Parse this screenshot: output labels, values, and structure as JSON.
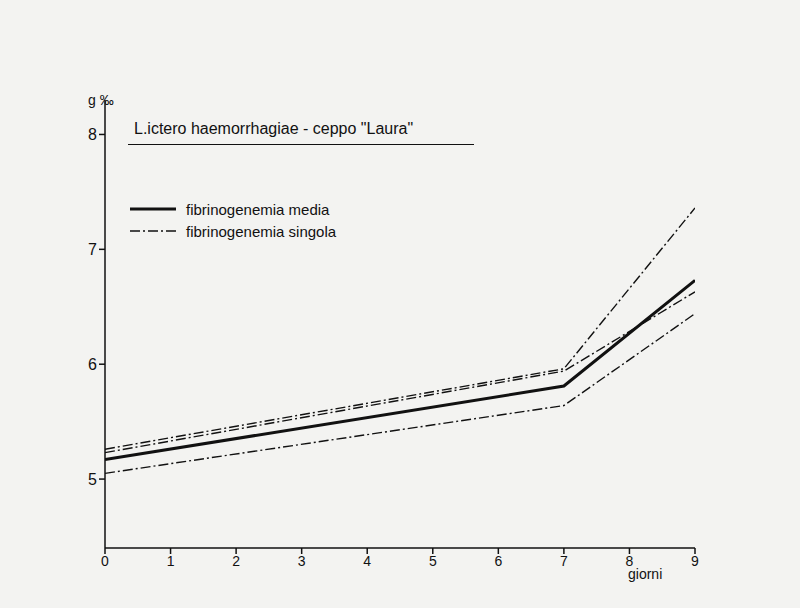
{
  "chart_data": {
    "type": "line",
    "title": "L.ictero haemorrhagiae - ceppo \"Laura\"",
    "y_label": "g ‰",
    "x_label": "giorni",
    "x": [
      0,
      7,
      9
    ],
    "xlim": [
      0,
      9
    ],
    "xticks": [
      0,
      1,
      2,
      3,
      4,
      5,
      6,
      7,
      8,
      9
    ],
    "ylim": [
      4.4,
      8.3
    ],
    "yticks": [
      5,
      6,
      7,
      8
    ],
    "grid": false,
    "legend": "upper left",
    "series": [
      {
        "name": "fibrinogenemia media",
        "color": "#111111",
        "line_style": "solid",
        "values": [
          5.17,
          5.81,
          6.73
        ]
      },
      {
        "name": "fibrinogenemia singola",
        "color": "#111111",
        "line_style": "dashdot",
        "values": [
          5.26,
          5.96,
          7.36
        ]
      },
      {
        "name": "fibrinogenemia singola",
        "color": "#111111",
        "line_style": "dashdot",
        "values": [
          5.23,
          5.94,
          6.63
        ]
      },
      {
        "name": "fibrinogenemia singola",
        "color": "#111111",
        "line_style": "dashdot",
        "values": [
          5.05,
          5.64,
          6.44
        ]
      }
    ]
  }
}
